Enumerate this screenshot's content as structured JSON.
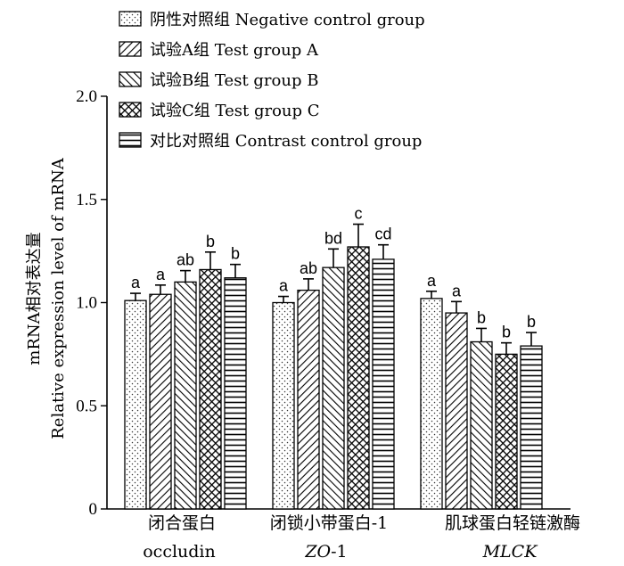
{
  "chart_data": {
    "type": "bar",
    "ylabel_lines": [
      "mRNA相对表达量",
      "Relative expression level of mRNA"
    ],
    "ylim": [
      0,
      2.0
    ],
    "yticks": [
      "0",
      "0.5",
      "1.0",
      "1.5",
      "2.0"
    ],
    "ytick_values": [
      0,
      0.5,
      1.0,
      1.5,
      2.0
    ],
    "grid": false,
    "legend_position": "top-left",
    "categories": [
      {
        "label_cn": "闭合蛋白",
        "label_en": "occludin",
        "italic": false
      },
      {
        "label_cn": "闭锁小带蛋白-1",
        "label_en": "ZO-1",
        "label_en_italic_part": "ZO",
        "label_en_plain_part": "-1",
        "italic": true
      },
      {
        "label_cn": "肌球蛋白轻链激酶",
        "label_en": "MLCK",
        "italic": true
      }
    ],
    "series": [
      {
        "name": "阴性对照组  Negative control group",
        "pattern": "dots",
        "values": [
          1.01,
          1.0,
          1.02
        ],
        "errors": [
          0.035,
          0.03,
          0.035
        ],
        "sig": [
          "a",
          "a",
          "a"
        ]
      },
      {
        "name": "试验A组  Test group A",
        "pattern": "diag-right",
        "values": [
          1.04,
          1.06,
          0.95
        ],
        "errors": [
          0.045,
          0.055,
          0.055
        ],
        "sig": [
          "a",
          "ab",
          "a"
        ]
      },
      {
        "name": "试验B组  Test group B",
        "pattern": "diag-left",
        "values": [
          1.1,
          1.17,
          0.81
        ],
        "errors": [
          0.055,
          0.09,
          0.065
        ],
        "sig": [
          "ab",
          "bd",
          "b"
        ]
      },
      {
        "name": "试验C组  Test group C",
        "pattern": "crosshatch",
        "values": [
          1.16,
          1.27,
          0.75
        ],
        "errors": [
          0.085,
          0.11,
          0.055
        ],
        "sig": [
          "b",
          "c",
          "b"
        ]
      },
      {
        "name": "对比对照组  Contrast control group",
        "pattern": "horizontal",
        "values": [
          1.12,
          1.21,
          0.79
        ],
        "errors": [
          0.065,
          0.07,
          0.065
        ],
        "sig": [
          "b",
          "cd",
          "b"
        ]
      }
    ]
  }
}
